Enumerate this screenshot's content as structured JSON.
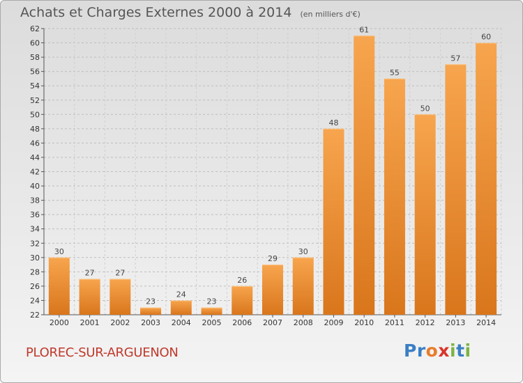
{
  "header": {
    "title": "Achats et Charges Externes 2000 à 2014",
    "subtitle": "(en milliers d'€)"
  },
  "footer": {
    "commune": "PLOREC-SUR-ARGUENON",
    "logo": [
      {
        "ch": "P",
        "color": "#3a7fc4"
      },
      {
        "ch": "r",
        "color": "#3a7fc4"
      },
      {
        "ch": "o",
        "color": "#e87c2a"
      },
      {
        "ch": "x",
        "color": "#d9342b"
      },
      {
        "ch": "i",
        "color": "#7cb342"
      },
      {
        "ch": "t",
        "color": "#3a7fc4"
      },
      {
        "ch": "i",
        "color": "#7cb342"
      }
    ]
  },
  "chart_data": {
    "type": "bar",
    "title": "Achats et Charges Externes 2000 à 2014",
    "subtitle": "(en milliers d'€)",
    "categories": [
      "2000",
      "2001",
      "2002",
      "2003",
      "2004",
      "2005",
      "2006",
      "2007",
      "2008",
      "2009",
      "2010",
      "2011",
      "2012",
      "2013",
      "2014"
    ],
    "values": [
      30,
      27,
      27,
      23,
      24,
      23,
      26,
      29,
      30,
      48,
      61,
      55,
      50,
      57,
      60
    ],
    "ylim": [
      22,
      62
    ],
    "yticks": [
      22,
      24,
      26,
      28,
      30,
      32,
      34,
      36,
      38,
      40,
      42,
      44,
      46,
      48,
      50,
      52,
      54,
      56,
      58,
      60,
      62
    ],
    "grid": true,
    "bar_color": "#f0922f"
  }
}
